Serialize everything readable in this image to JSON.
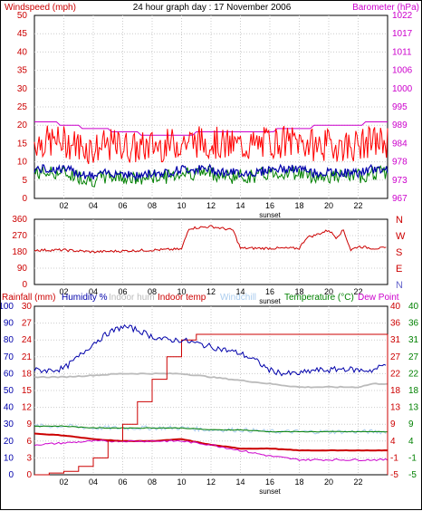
{
  "chart_data": [
    {
      "type": "line",
      "title": "24 hour graph day : 17 November 2006",
      "left_axis_label": "Windspeed (mph)",
      "right_axis_label": "Barometer (hPa)",
      "left_ylim": [
        0,
        50
      ],
      "left_ticks": [
        "0",
        "5",
        "10",
        "15",
        "20",
        "25",
        "30",
        "35",
        "40",
        "45",
        "50"
      ],
      "right_ylim": [
        967,
        1022
      ],
      "right_ticks": [
        "967",
        "973",
        "978",
        "984",
        "989",
        "995",
        "1000",
        "1006",
        "1011",
        "1017",
        "1022"
      ],
      "x_ticks": [
        "02",
        "04",
        "06",
        "08",
        "10",
        "12",
        "14",
        "16",
        "18",
        "20",
        "22"
      ],
      "sunset_label": "sunset",
      "grid": true,
      "colors": {
        "left_axis": "#cc0000",
        "right_axis": "#cc00cc",
        "gust": "#ff0000",
        "avg_speed": "#008000",
        "windspeed": "#0000aa",
        "barometer": "#cc00cc"
      },
      "series": [
        {
          "name": "Windspeed (mph)",
          "x": [
            0,
            1,
            2,
            3,
            4,
            5,
            6,
            7,
            8,
            9,
            10,
            11,
            12,
            13,
            14,
            15,
            16,
            17,
            18,
            19,
            20,
            21,
            22,
            23,
            24
          ],
          "values": [
            8,
            8,
            8,
            7,
            6,
            7,
            7,
            6,
            7,
            7,
            8,
            8,
            8,
            7,
            7,
            7,
            8,
            8,
            8,
            7,
            7,
            7,
            7,
            8,
            8
          ]
        },
        {
          "name": "Barometer (hPa)",
          "x": [
            0,
            1,
            2,
            4,
            6,
            8,
            10,
            12,
            14,
            16,
            17,
            18,
            20,
            21,
            22,
            23,
            24
          ],
          "values": [
            990,
            990,
            989,
            988,
            987,
            986,
            986,
            987,
            987,
            987,
            988,
            988,
            989,
            989,
            989,
            990,
            990
          ]
        }
      ]
    },
    {
      "type": "line",
      "left_ticks": [
        "0",
        "90",
        "180",
        "270",
        "360"
      ],
      "left_ylim": [
        0,
        360
      ],
      "right_ticks": [
        "N",
        "W",
        "S",
        "E",
        "N"
      ],
      "x_ticks": [
        "02",
        "04",
        "06",
        "08",
        "10",
        "12",
        "14",
        "16",
        "18",
        "20",
        "22"
      ],
      "sunset_label": "sunset",
      "colors": {
        "direction": "#cc0000",
        "N": "#cc0000",
        "W": "#cc0000",
        "S": "#cc0000",
        "E": "#cc0000",
        "N2": "#6666cc"
      },
      "series": [
        {
          "name": "Wind direction",
          "x": [
            0,
            2,
            4,
            6,
            8,
            10,
            10.5,
            12,
            13.5,
            14,
            16,
            18,
            18.5,
            19,
            20,
            20.5,
            21,
            21.5,
            22,
            23,
            24
          ],
          "values": [
            190,
            190,
            180,
            185,
            190,
            195,
            310,
            320,
            300,
            200,
            200,
            200,
            260,
            270,
            300,
            260,
            300,
            190,
            210,
            200,
            200
          ]
        }
      ]
    },
    {
      "type": "line",
      "legend": [
        "Rainfall (mm)",
        "Humidity %",
        "Indoor hum",
        "Indoor temp",
        "Windchill",
        "Temperature (°C)",
        "Dew Point"
      ],
      "left_ticks_humidity": [
        "0",
        "10",
        "20",
        "30",
        "40",
        "50",
        "60",
        "70",
        "80",
        "90",
        "100"
      ],
      "left_ticks_rain": [
        "0",
        "3",
        "6",
        "9",
        "12",
        "15",
        "18",
        "21",
        "24",
        "27",
        "30"
      ],
      "right_ticks_temp_a": [
        "-5",
        "-1",
        "4",
        "9",
        "13",
        "18",
        "22",
        "27",
        "31",
        "36",
        "40"
      ],
      "right_ticks_temp_b": [
        "-5",
        "-1",
        "4",
        "9",
        "13",
        "18",
        "22",
        "27",
        "31",
        "36",
        "40"
      ],
      "humidity_ylim": [
        0,
        100
      ],
      "temp_ylim": [
        -5,
        40
      ],
      "x_ticks": [
        "02",
        "04",
        "06",
        "08",
        "10",
        "12",
        "14",
        "16",
        "18",
        "20",
        "22"
      ],
      "sunset_label": "sunset",
      "colors": {
        "rain": "#cc0000",
        "humidity": "#0000aa",
        "indoor_hum": "#bbbbbb",
        "indoor_temp": "#cc0000",
        "windchill": "#aaccee",
        "temperature": "#008000",
        "dewpoint": "#cc00cc",
        "left_a": "#cc0000",
        "left_b": "#0000aa",
        "right_a": "#cc0000",
        "right_b": "#008000"
      },
      "series": [
        {
          "name": "Humidity %",
          "x": [
            0,
            1,
            2,
            3,
            4,
            5,
            6,
            7,
            8,
            9,
            10,
            11,
            12,
            13,
            14,
            15,
            16,
            17,
            18,
            19,
            20,
            21,
            22,
            23,
            24
          ],
          "values": [
            62,
            62,
            63,
            70,
            78,
            84,
            88,
            86,
            82,
            80,
            80,
            78,
            76,
            74,
            72,
            68,
            62,
            60,
            60,
            62,
            62,
            63,
            62,
            62,
            66
          ]
        },
        {
          "name": "Indoor hum",
          "x": [
            0,
            2,
            4,
            6,
            8,
            10,
            12,
            14,
            16,
            18,
            20,
            22,
            23,
            24
          ],
          "values": [
            58,
            58,
            59,
            60,
            60,
            60,
            58,
            56,
            54,
            52,
            52,
            52,
            54,
            54
          ]
        },
        {
          "name": "Indoor temp",
          "x": [
            0,
            4,
            8,
            12,
            16,
            20,
            24
          ],
          "values": [
            21.7,
            21.6,
            21.5,
            21.4,
            21.3,
            21.3,
            21.4
          ]
        },
        {
          "name": "Windchill",
          "x": [
            0,
            2,
            4,
            6,
            8,
            10,
            12,
            14,
            16,
            18,
            20,
            22,
            24
          ],
          "values": [
            6,
            5.5,
            4.5,
            4,
            4,
            4.5,
            3,
            2,
            2,
            1.5,
            1.5,
            1.5,
            1.5
          ]
        },
        {
          "name": "Temperature (°C)",
          "x": [
            0,
            2,
            4,
            6,
            8,
            10,
            12,
            14,
            16,
            18,
            20,
            22,
            24
          ],
          "values": [
            8,
            8,
            7.5,
            7.5,
            7.5,
            7.5,
            7,
            7,
            6.5,
            6.5,
            6.5,
            6.5,
            6.5
          ]
        },
        {
          "name": "Dew Point",
          "x": [
            0,
            2,
            4,
            6,
            8,
            10,
            12,
            14,
            16,
            18,
            20,
            22,
            24
          ],
          "values": [
            3,
            3.5,
            4,
            4,
            4,
            4,
            3,
            1.5,
            0,
            -1,
            -1,
            -1,
            -1
          ]
        },
        {
          "name": "Rainfall (mm)",
          "x": [
            0,
            1,
            2,
            3,
            4,
            5,
            6,
            7,
            8,
            9,
            10,
            11,
            12,
            24
          ],
          "values": [
            0,
            0.3,
            0.6,
            1.5,
            3,
            6,
            9,
            13,
            17,
            21,
            24,
            25,
            25,
            25
          ]
        }
      ]
    }
  ]
}
